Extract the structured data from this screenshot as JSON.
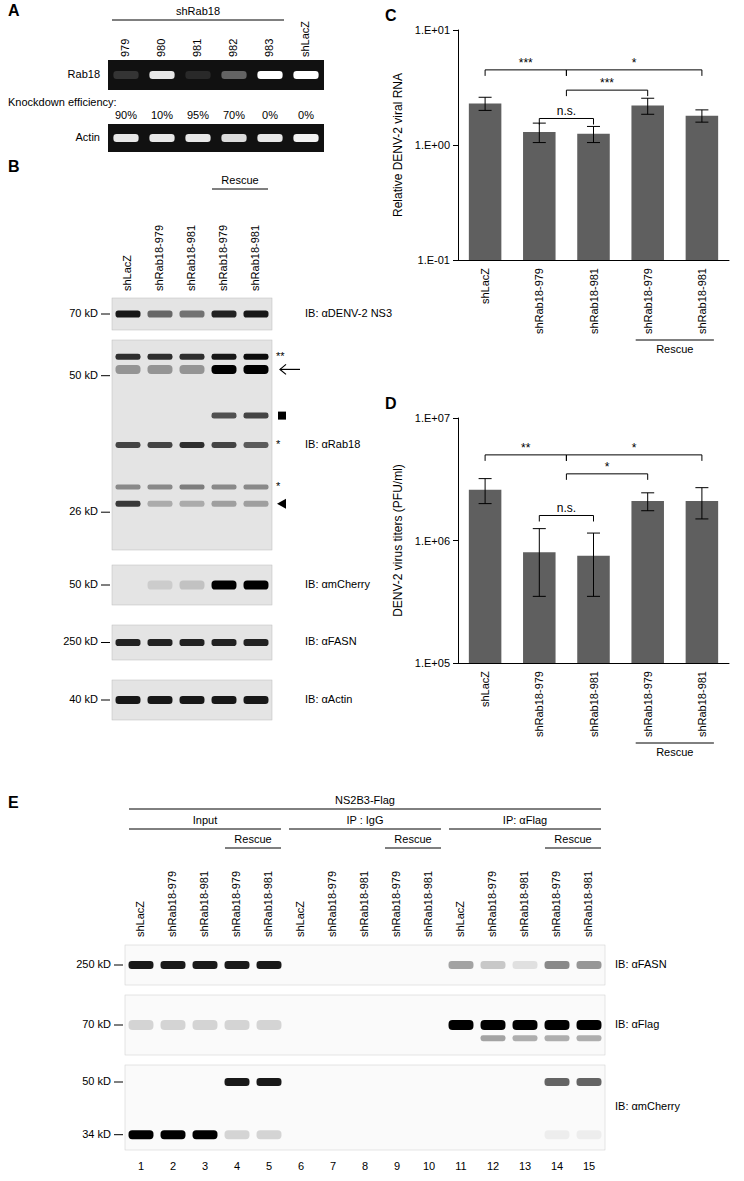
{
  "panels": {
    "A": {
      "letter": "A",
      "group": {
        "text": "shRab18",
        "from": 0,
        "to": 4
      },
      "lanes": [
        "979",
        "980",
        "981",
        "982",
        "983",
        "shLacZ"
      ],
      "gels": [
        {
          "label": "Rab18",
          "bands": [
            {
              "intensity": [
                0.15,
                0.9,
                0.1,
                0.35,
                1,
                1
              ]
            }
          ]
        },
        {
          "label": "Actin",
          "bands": [
            {
              "intensity": [
                0.9,
                0.9,
                0.9,
                0.85,
                0.9,
                0.95
              ]
            }
          ]
        }
      ],
      "knockdown": {
        "label": "Knockdown efficiency:",
        "values": [
          "90%",
          "10%",
          "95%",
          "70%",
          "0%",
          "0%"
        ]
      }
    },
    "B": {
      "letter": "B",
      "rescue": {
        "text": "Rescue",
        "lanes": [
          3,
          4
        ]
      },
      "lanes": [
        "shLacZ",
        "shRab18-979",
        "shRab18-981",
        "shRab18-979",
        "shRab18-981"
      ],
      "blots": [
        {
          "ib": "IB: αDENV-2 NS3",
          "mw": [
            "70 kD"
          ],
          "bands": [
            {
              "intensity": [
                0.9,
                0.55,
                0.5,
                0.85,
                0.9
              ]
            }
          ]
        },
        {
          "ib": "IB: αRab18",
          "mw": [
            "50 kD",
            "26 kD"
          ],
          "bands": [
            {
              "intensity": [
                0.8,
                0.8,
                0.8,
                0.9,
                0.95
              ],
              "mark_text": "**"
            },
            {
              "intensity": [
                0.35,
                0.35,
                0.35,
                1,
                1
              ]
            },
            {
              "intensity": [
                0,
                0,
                0,
                0.65,
                0.7
              ]
            },
            {
              "intensity": [
                0.7,
                0.7,
                0.8,
                0.7,
                0.6
              ],
              "mark_text": "*"
            },
            {
              "intensity": [
                0.4,
                0.4,
                0.45,
                0.4,
                0.4
              ],
              "mark_text": "*"
            },
            {
              "intensity": [
                0.75,
                0.25,
                0.25,
                0.3,
                0.3
              ]
            }
          ]
        },
        {
          "ib": "IB: αmCherry",
          "mw": [
            "50 kD"
          ],
          "bands": [
            {
              "intensity": [
                0,
                0.1,
                0.15,
                1,
                1
              ]
            }
          ]
        },
        {
          "ib": "IB: αFASN",
          "mw": [
            "250 kD"
          ],
          "bands": [
            {
              "intensity": [
                0.85,
                0.85,
                0.85,
                0.85,
                0.85
              ]
            }
          ]
        },
        {
          "ib": "IB: αActin",
          "mw": [
            "40 kD"
          ],
          "bands": [
            {
              "intensity": [
                0.9,
                0.9,
                0.9,
                0.9,
                0.9
              ]
            }
          ]
        }
      ]
    },
    "E": {
      "letter": "E",
      "header": "NS2B3-Flag",
      "groups": [
        {
          "label": "Input",
          "rescue": {
            "text": "Rescue",
            "lanes": [
              3,
              4
            ]
          },
          "lanes": [
            "shLacZ",
            "shRab18-979",
            "shRab18-981",
            "shRab18-979",
            "shRab18-981"
          ]
        },
        {
          "label": "IP : IgG",
          "rescue": {
            "text": "Rescue",
            "lanes": [
              3,
              4
            ]
          },
          "lanes": [
            "shLacZ",
            "shRab18-979",
            "shRab18-981",
            "shRab18-979",
            "shRab18-981"
          ]
        },
        {
          "label": "IP: αFlag",
          "rescue": {
            "text": "Rescue",
            "lanes": [
              3,
              4
            ]
          },
          "lanes": [
            "shLacZ",
            "shRab18-979",
            "shRab18-981",
            "shRab18-979",
            "shRab18-981"
          ]
        }
      ],
      "blots": [
        {
          "ib": "IB: αFASN",
          "mw": [
            "250 kD"
          ],
          "bands": [
            {
              "intensity": [
                0.9,
                0.9,
                0.9,
                0.9,
                0.9,
                0,
                0,
                0,
                0,
                0,
                0.35,
                0.2,
                0.1,
                0.45,
                0.4
              ]
            }
          ]
        },
        {
          "ib": "IB: αFlag",
          "mw": [
            "70 kD"
          ],
          "bands": [
            {
              "intensity": [
                0.15,
                0.15,
                0.15,
                0.15,
                0.15,
                0,
                0,
                0,
                0,
                0,
                1,
                1,
                1,
                1,
                1
              ]
            },
            {
              "intensity": [
                0,
                0,
                0,
                0,
                0,
                0,
                0,
                0,
                0,
                0,
                0,
                0.35,
                0.3,
                0.3,
                0.3
              ]
            }
          ]
        },
        {
          "ib": "IB: αmCherry",
          "mw": [
            "50 kD",
            "34 kD"
          ],
          "bands": [
            {
              "intensity": [
                0,
                0,
                0,
                0.9,
                0.9,
                0,
                0,
                0,
                0,
                0,
                0,
                0,
                0,
                0.6,
                0.6
              ]
            },
            {
              "intensity": [
                1,
                1,
                1,
                0.15,
                0.15,
                0,
                0,
                0,
                0,
                0,
                0,
                0,
                0,
                0.05,
                0.05
              ]
            }
          ]
        }
      ],
      "lane_numbers": [
        "1",
        "2",
        "3",
        "4",
        "5",
        "6",
        "7",
        "8",
        "9",
        "10",
        "11",
        "12",
        "13",
        "14",
        "15"
      ]
    }
  },
  "chart_data": [
    {
      "type": "bar",
      "title": "C",
      "y_label": "Relative DENV-2 viral RNA",
      "categories": [
        "shLacZ",
        "shRab18-979",
        "shRab18-981",
        "shRab18-979",
        "shRab18-981"
      ],
      "values": [
        2.3,
        1.3,
        1.25,
        2.2,
        1.8
      ],
      "errors": [
        0.3,
        0.25,
        0.2,
        0.35,
        0.22
      ],
      "color": "#5f5f5f",
      "log": "y",
      "ylim": [
        0.1,
        10
      ],
      "yticks": [
        {
          "value": 0.1,
          "label": "1.E-01"
        },
        {
          "value": 1,
          "label": "1.E+00"
        },
        {
          "value": 10,
          "label": "1.E+01"
        }
      ],
      "grid": false,
      "group_label": {
        "text": "Rescue",
        "from": 3,
        "to": 4
      },
      "significance": [
        {
          "from": 0,
          "to": 1.5,
          "y": 4.5,
          "label": "***"
        },
        {
          "from": 1.5,
          "to": 4,
          "y": 4.5,
          "label": "*"
        },
        {
          "from": 1.5,
          "to": 3,
          "y": 3.0,
          "label": "***"
        },
        {
          "from": 1,
          "to": 2,
          "y": 1.7,
          "label": "n.s."
        }
      ]
    },
    {
      "type": "bar",
      "title": "D",
      "y_label": "DENV-2 virus titers (PFU/ml)",
      "categories": [
        "shLacZ",
        "shRab18-979",
        "shRab18-981",
        "shRab18-979",
        "shRab18-981"
      ],
      "values": [
        2600000,
        800000,
        750000,
        2100000,
        2100000
      ],
      "errors": [
        600000,
        450000,
        400000,
        350000,
        600000
      ],
      "color": "#5f5f5f",
      "log": "y",
      "ylim": [
        100000,
        10000000
      ],
      "yticks": [
        {
          "value": 100000,
          "label": "1.E+05"
        },
        {
          "value": 1000000,
          "label": "1.E+06"
        },
        {
          "value": 10000000,
          "label": "1.E+07"
        }
      ],
      "grid": false,
      "group_label": {
        "text": "Rescue",
        "from": 3,
        "to": 4
      },
      "significance": [
        {
          "from": 0,
          "to": 1.5,
          "y": 5000000,
          "label": "**"
        },
        {
          "from": 1.5,
          "to": 4,
          "y": 5000000,
          "label": "*"
        },
        {
          "from": 1.5,
          "to": 3,
          "y": 3500000,
          "label": "*"
        },
        {
          "from": 1,
          "to": 2,
          "y": 1600000,
          "label": "n.s."
        }
      ]
    }
  ]
}
